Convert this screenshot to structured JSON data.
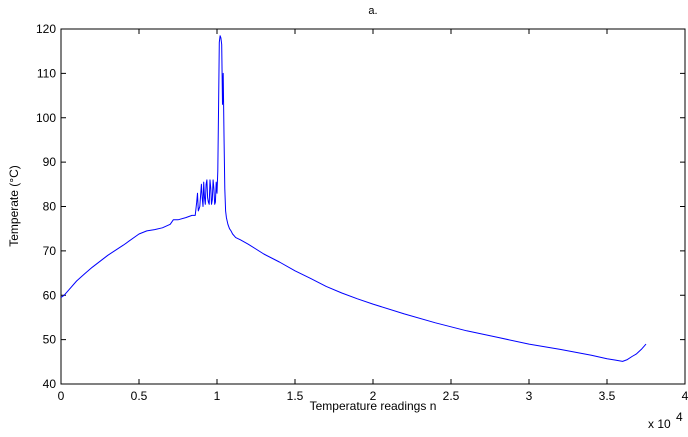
{
  "chart_data": {
    "type": "line",
    "title": "a.",
    "xlabel": "Temperature readings n",
    "ylabel": "Temperate (°C)",
    "x_multiplier_label": "x 10",
    "x_multiplier_exponent": "4",
    "xlim": [
      0,
      4
    ],
    "ylim": [
      40,
      120
    ],
    "x_ticks": [
      "0",
      "0.5",
      "1",
      "1.5",
      "2",
      "2.5",
      "3",
      "3.5",
      "4"
    ],
    "y_ticks": [
      "40",
      "50",
      "60",
      "70",
      "80",
      "90",
      "100",
      "110",
      "120"
    ],
    "grid": false,
    "line_color": "#0000ff",
    "series": [
      {
        "x": [
          0,
          0.02,
          0.05,
          0.1,
          0.15,
          0.2,
          0.3,
          0.4,
          0.5,
          0.55,
          0.6,
          0.65,
          0.7,
          0.72,
          0.75,
          0.8,
          0.84,
          0.86,
          0.87,
          0.875,
          0.88,
          0.885,
          0.89,
          0.9,
          0.905,
          0.91,
          0.915,
          0.92,
          0.925,
          0.93,
          0.935,
          0.94,
          0.945,
          0.95,
          0.955,
          0.96,
          0.965,
          0.97,
          0.975,
          0.98,
          0.985,
          0.99,
          0.995,
          1.0,
          1.005,
          1.01,
          1.015,
          1.02,
          1.025,
          1.03,
          1.035,
          1.04,
          1.045,
          1.05,
          1.055,
          1.06,
          1.07,
          1.08,
          1.09,
          1.1,
          1.12,
          1.15,
          1.2,
          1.3,
          1.4,
          1.5,
          1.6,
          1.7,
          1.8,
          1.9,
          2.0,
          2.2,
          2.4,
          2.6,
          2.8,
          3.0,
          3.2,
          3.4,
          3.5,
          3.55,
          3.6,
          3.63,
          3.66,
          3.69,
          3.72,
          3.75
        ],
        "y": [
          59.5,
          60,
          61.2,
          63.2,
          64.8,
          66.3,
          69,
          71.3,
          73.8,
          74.5,
          74.8,
          75.2,
          76,
          77,
          77,
          77.5,
          78,
          78,
          81,
          83,
          79,
          79.5,
          80,
          85,
          82,
          80,
          85.5,
          82,
          80.5,
          85,
          86,
          82,
          81,
          80.5,
          86,
          84,
          80.5,
          81.5,
          86,
          84,
          80.5,
          81,
          85.5,
          83,
          88,
          103,
          117,
          118.5,
          118,
          116.5,
          103,
          110,
          96,
          84,
          79,
          77.5,
          76,
          75,
          74.5,
          73.8,
          73,
          72.5,
          71.5,
          69.3,
          67.5,
          65.5,
          63.8,
          62,
          60.5,
          59.2,
          58,
          55.8,
          53.8,
          52,
          50.5,
          49,
          47.8,
          46.5,
          45.7,
          45.4,
          45.1,
          45.5,
          46.2,
          46.8,
          47.8,
          49
        ]
      }
    ]
  }
}
